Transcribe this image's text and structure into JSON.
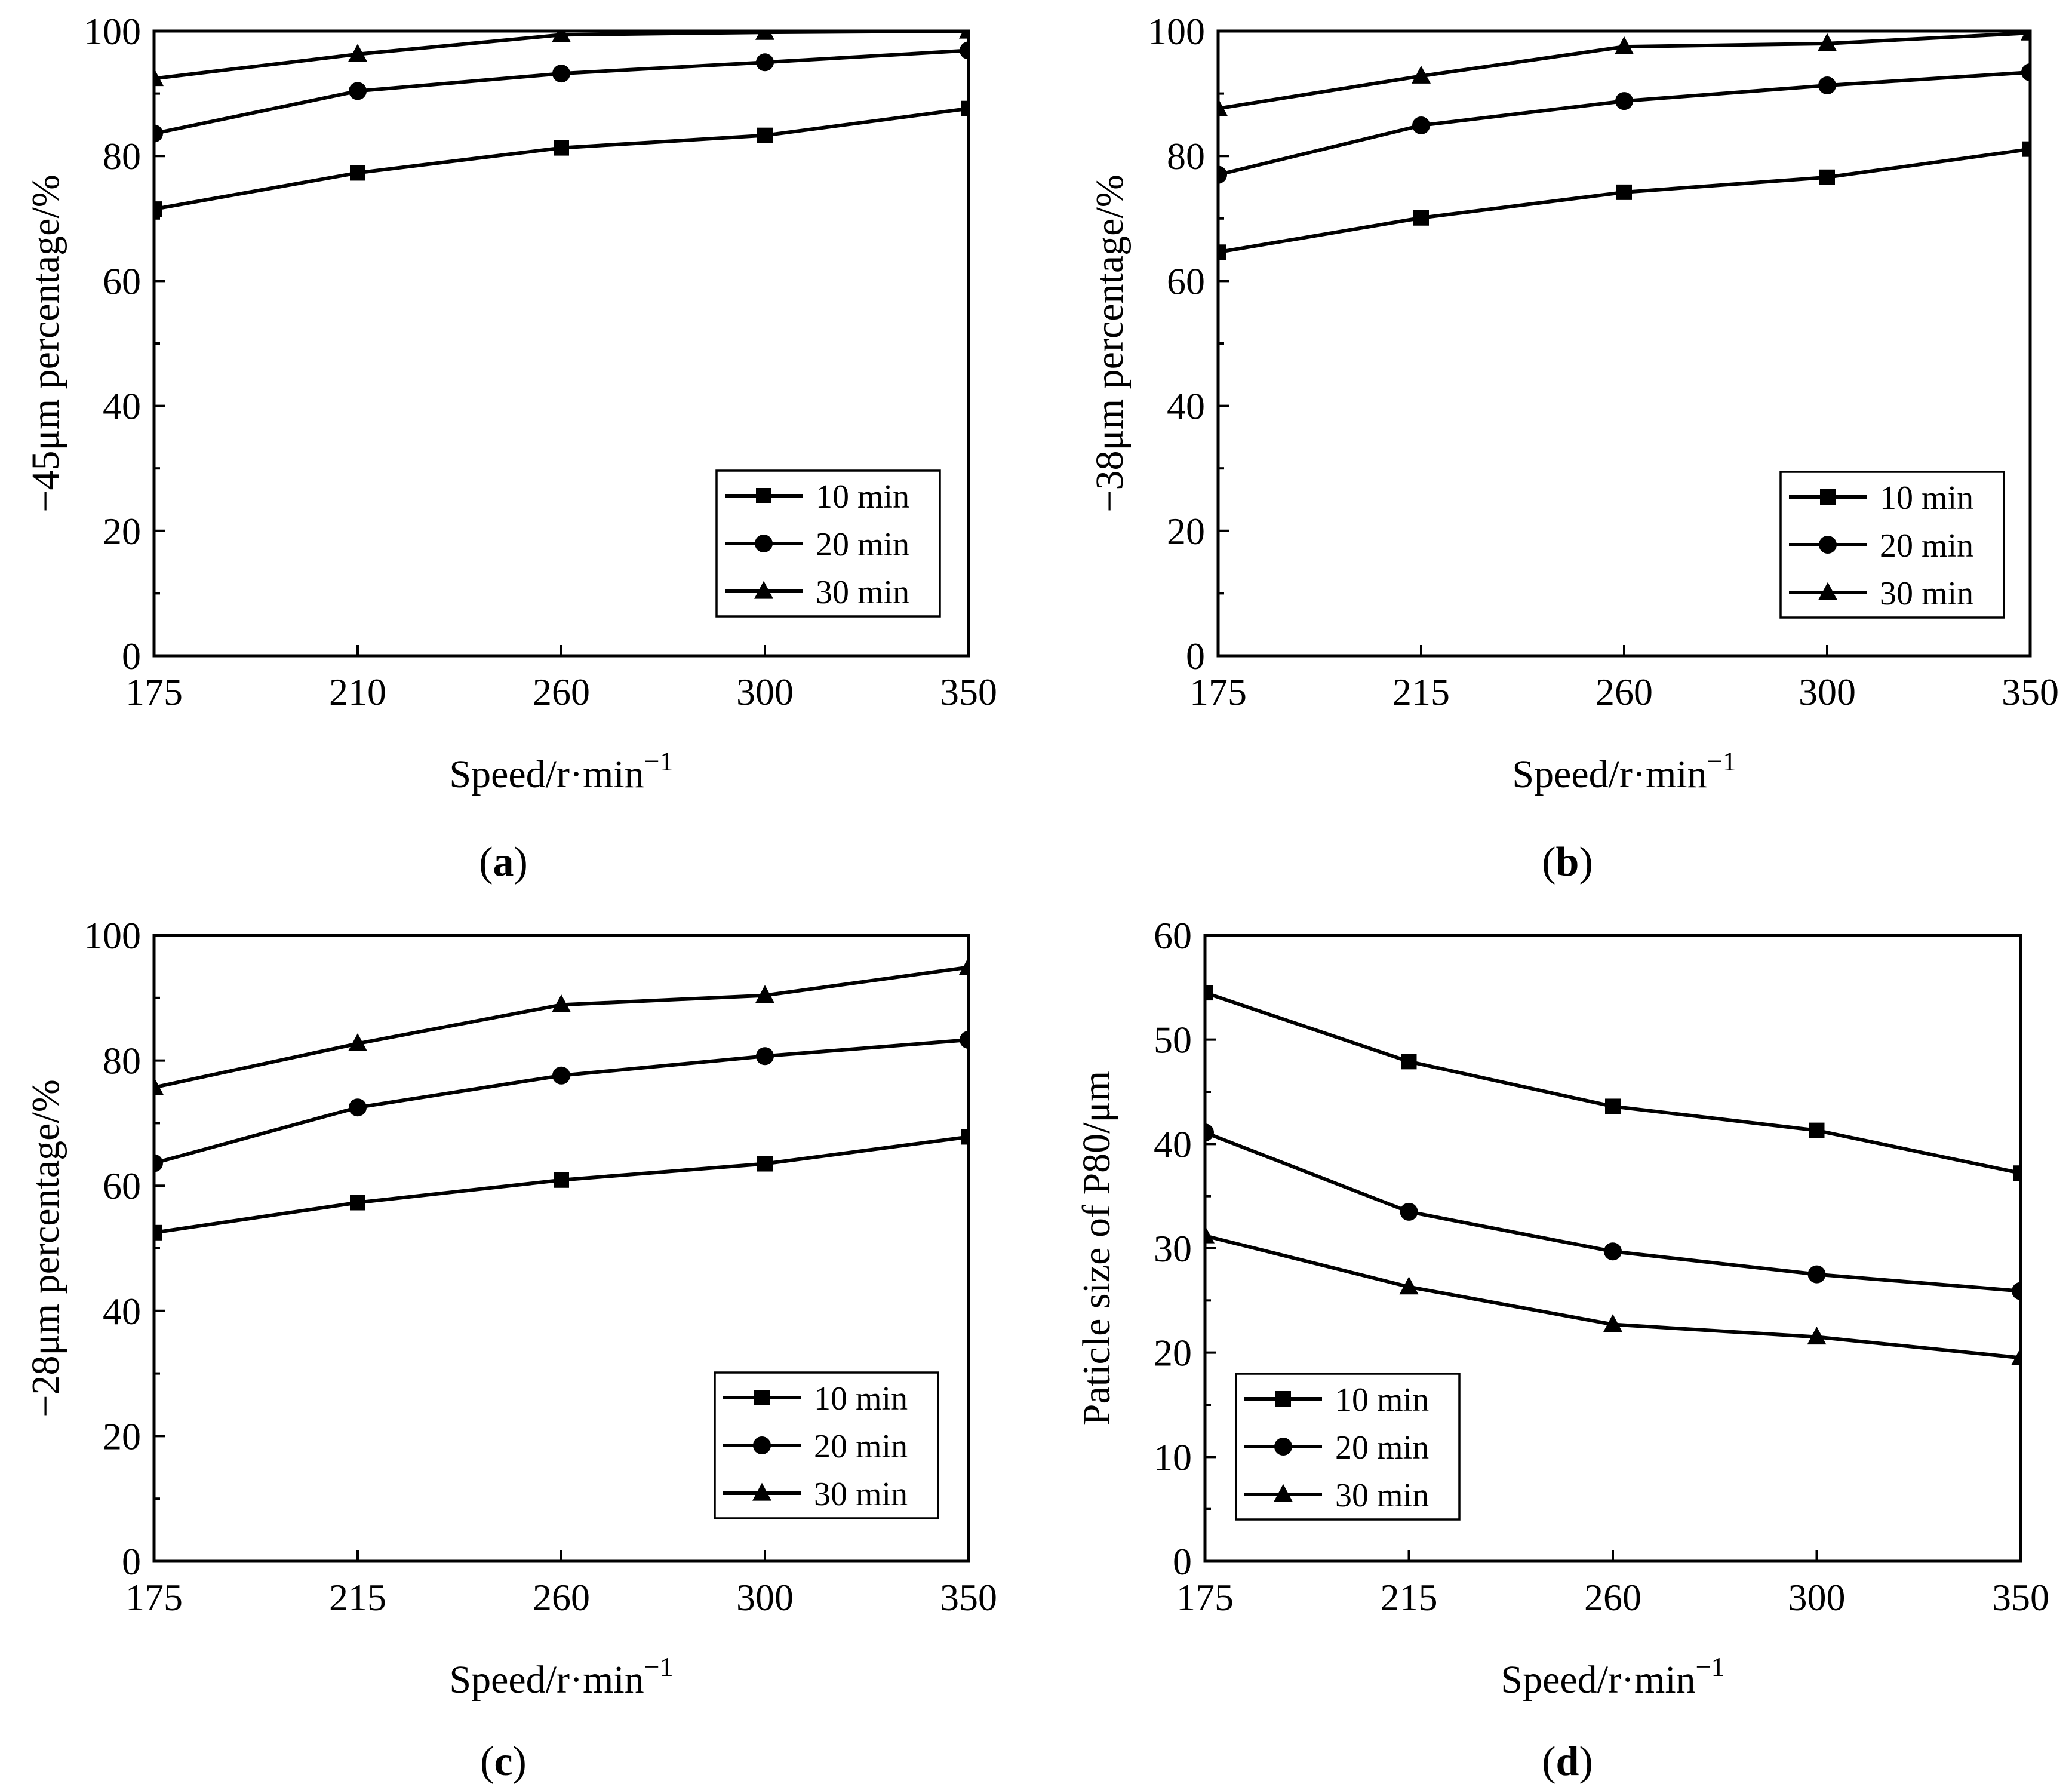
{
  "colors": {
    "ink": "#000000",
    "background": "#ffffff"
  },
  "chart_data": [
    {
      "type": "line",
      "panel": "(a)",
      "panel_letter": "a",
      "categories": [
        "175",
        "210",
        "260",
        "300",
        "350"
      ],
      "xlabel": "Speed/r·min",
      "xlabel_sup": "−1",
      "ylabel": "−45μm percentage/%",
      "ylim": [
        0,
        100
      ],
      "yticks": [
        0,
        20,
        40,
        60,
        80,
        100
      ],
      "legend_position": "bottom-right",
      "series": [
        {
          "name": "10 min",
          "marker": "square",
          "values": [
            71.5,
            77.3,
            81.3,
            83.3,
            87.6
          ]
        },
        {
          "name": "20 min",
          "marker": "circle",
          "values": [
            83.6,
            90.4,
            93.2,
            95.0,
            96.9
          ]
        },
        {
          "name": "30 min",
          "marker": "triangle",
          "values": [
            92.4,
            96.3,
            99.4,
            99.8,
            100.0
          ]
        }
      ]
    },
    {
      "type": "line",
      "panel": "(b)",
      "panel_letter": "b",
      "categories": [
        "175",
        "215",
        "260",
        "300",
        "350"
      ],
      "xlabel": "Speed/r·min",
      "xlabel_sup": "−1",
      "ylabel": "−38μm percentage/%",
      "ylim": [
        0,
        100
      ],
      "yticks": [
        0,
        20,
        40,
        60,
        80,
        100
      ],
      "legend_position": "bottom-right",
      "series": [
        {
          "name": "10 min",
          "marker": "square",
          "values": [
            64.6,
            70.1,
            74.2,
            76.6,
            81.1
          ]
        },
        {
          "name": "20 min",
          "marker": "circle",
          "values": [
            77.0,
            84.9,
            88.8,
            91.3,
            93.4
          ]
        },
        {
          "name": "30 min",
          "marker": "triangle",
          "values": [
            87.6,
            92.8,
            97.5,
            98.0,
            99.7
          ]
        }
      ]
    },
    {
      "type": "line",
      "panel": "(c)",
      "panel_letter": "c",
      "categories": [
        "175",
        "215",
        "260",
        "300",
        "350"
      ],
      "xlabel": "Speed/r·min",
      "xlabel_sup": "−1",
      "ylabel": "−28μm percentage/%",
      "ylim": [
        0,
        100
      ],
      "yticks": [
        0,
        20,
        40,
        60,
        80,
        100
      ],
      "legend_position": "bottom-right",
      "series": [
        {
          "name": "10 min",
          "marker": "square",
          "values": [
            52.5,
            57.3,
            60.9,
            63.5,
            67.8
          ]
        },
        {
          "name": "20 min",
          "marker": "circle",
          "values": [
            63.6,
            72.5,
            77.6,
            80.7,
            83.3
          ]
        },
        {
          "name": "30 min",
          "marker": "triangle",
          "values": [
            75.7,
            82.7,
            88.9,
            90.4,
            94.9
          ]
        }
      ]
    },
    {
      "type": "line",
      "panel": "(d)",
      "panel_letter": "d",
      "categories": [
        "175",
        "215",
        "260",
        "300",
        "350"
      ],
      "xlabel": "Speed/r·min",
      "xlabel_sup": "−1",
      "ylabel": "Paticle size of P80/μm",
      "ylim": [
        0,
        60
      ],
      "yticks": [
        0,
        10,
        20,
        30,
        40,
        50,
        60
      ],
      "legend_position": "bottom-left",
      "series": [
        {
          "name": "10 min",
          "marker": "square",
          "values": [
            54.5,
            47.9,
            43.6,
            41.3,
            37.2
          ]
        },
        {
          "name": "20 min",
          "marker": "circle",
          "values": [
            41.1,
            33.5,
            29.7,
            27.5,
            25.9
          ]
        },
        {
          "name": "30 min",
          "marker": "triangle",
          "values": [
            31.2,
            26.3,
            22.7,
            21.5,
            19.5
          ]
        }
      ]
    }
  ]
}
